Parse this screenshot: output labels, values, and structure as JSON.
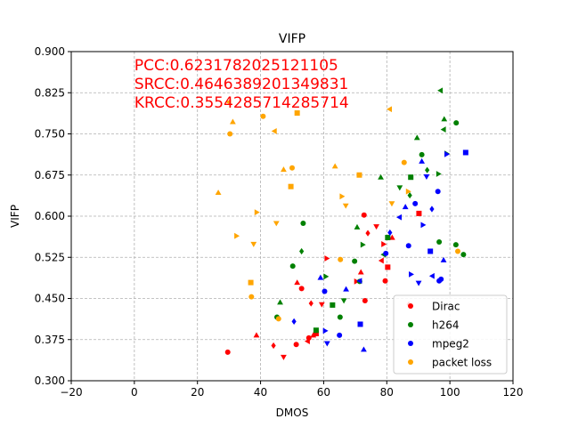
{
  "chart_data": {
    "type": "scatter",
    "title": "VIFP",
    "xlabel": "DMOS",
    "ylabel": "VIFP",
    "xlim": [
      -20,
      120
    ],
    "ylim": [
      0.3,
      0.9
    ],
    "xticks": [
      "−20",
      "0",
      "20",
      "40",
      "60",
      "80",
      "100",
      "120"
    ],
    "yticks": [
      "0.300",
      "0.375",
      "0.450",
      "0.525",
      "0.600",
      "0.675",
      "0.750",
      "0.825",
      "0.900"
    ],
    "grid": true,
    "legend_position": "lower-right",
    "annotations": [
      "PCC:0.6231782025121105",
      "SRCC:0.4646389201349831",
      "KRCC:0.3554285714285714"
    ],
    "annotation_color": "#ff0000",
    "series": [
      {
        "name": "Dirac",
        "color": "#ff0000",
        "points": [
          {
            "x": 29.6,
            "y": 0.352,
            "m": "circle"
          },
          {
            "x": 38.7,
            "y": 0.383,
            "m": "tri-up"
          },
          {
            "x": 44.1,
            "y": 0.364,
            "m": "diamond"
          },
          {
            "x": 47.3,
            "y": 0.343,
            "m": "tri-down"
          },
          {
            "x": 51.3,
            "y": 0.366,
            "m": "circle"
          },
          {
            "x": 51.6,
            "y": 0.479,
            "m": "tri-up"
          },
          {
            "x": 53.0,
            "y": 0.468,
            "m": "circle"
          },
          {
            "x": 54.9,
            "y": 0.372,
            "m": "tri-left"
          },
          {
            "x": 55.3,
            "y": 0.378,
            "m": "circle"
          },
          {
            "x": 56.0,
            "y": 0.441,
            "m": "diamond"
          },
          {
            "x": 56.7,
            "y": 0.383,
            "m": "tri-up"
          },
          {
            "x": 57.6,
            "y": 0.386,
            "m": "square"
          },
          {
            "x": 59.4,
            "y": 0.439,
            "m": "tri-down"
          },
          {
            "x": 61.0,
            "y": 0.523,
            "m": "tri-right"
          },
          {
            "x": 70.4,
            "y": 0.481,
            "m": "tri-right"
          },
          {
            "x": 71.8,
            "y": 0.498,
            "m": "tri-up"
          },
          {
            "x": 72.8,
            "y": 0.602,
            "m": "circle"
          },
          {
            "x": 73.1,
            "y": 0.446,
            "m": "circle"
          },
          {
            "x": 74.0,
            "y": 0.569,
            "m": "diamond"
          },
          {
            "x": 76.7,
            "y": 0.581,
            "m": "tri-down"
          },
          {
            "x": 78.3,
            "y": 0.519,
            "m": "tri-left"
          },
          {
            "x": 79.0,
            "y": 0.549,
            "m": "tri-right"
          },
          {
            "x": 79.5,
            "y": 0.482,
            "m": "circle"
          },
          {
            "x": 80.3,
            "y": 0.507,
            "m": "square"
          },
          {
            "x": 81.7,
            "y": 0.561,
            "m": "tri-up"
          },
          {
            "x": 87.0,
            "y": 0.439,
            "m": "diamond"
          },
          {
            "x": 90.2,
            "y": 0.605,
            "m": "square"
          }
        ]
      },
      {
        "name": "h264",
        "color": "#008000",
        "points": [
          {
            "x": 45.2,
            "y": 0.416,
            "m": "circle"
          },
          {
            "x": 46.2,
            "y": 0.443,
            "m": "tri-up"
          },
          {
            "x": 50.2,
            "y": 0.509,
            "m": "circle"
          },
          {
            "x": 53.5,
            "y": 0.587,
            "m": "circle"
          },
          {
            "x": 53.0,
            "y": 0.536,
            "m": "diamond"
          },
          {
            "x": 57.6,
            "y": 0.392,
            "m": "square"
          },
          {
            "x": 60.7,
            "y": 0.49,
            "m": "tri-right"
          },
          {
            "x": 62.8,
            "y": 0.438,
            "m": "square"
          },
          {
            "x": 65.2,
            "y": 0.416,
            "m": "circle"
          },
          {
            "x": 66.4,
            "y": 0.446,
            "m": "tri-down"
          },
          {
            "x": 69.8,
            "y": 0.518,
            "m": "circle"
          },
          {
            "x": 70.6,
            "y": 0.58,
            "m": "tri-up"
          },
          {
            "x": 71.4,
            "y": 0.481,
            "m": "circle"
          },
          {
            "x": 72.4,
            "y": 0.548,
            "m": "tri-right"
          },
          {
            "x": 79.0,
            "y": 0.53,
            "m": "tri-left"
          },
          {
            "x": 78.1,
            "y": 0.671,
            "m": "tri-up"
          },
          {
            "x": 80.3,
            "y": 0.561,
            "m": "square"
          },
          {
            "x": 84.1,
            "y": 0.652,
            "m": "tri-down"
          },
          {
            "x": 87.3,
            "y": 0.638,
            "m": "diamond"
          },
          {
            "x": 87.6,
            "y": 0.671,
            "m": "square"
          },
          {
            "x": 89.6,
            "y": 0.743,
            "m": "tri-up"
          },
          {
            "x": 91.1,
            "y": 0.712,
            "m": "circle"
          },
          {
            "x": 92.8,
            "y": 0.684,
            "m": "diamond"
          },
          {
            "x": 96.6,
            "y": 0.553,
            "m": "circle"
          },
          {
            "x": 97.0,
            "y": 0.829,
            "m": "tri-left"
          },
          {
            "x": 98.0,
            "y": 0.758,
            "m": "tri-left"
          },
          {
            "x": 98.2,
            "y": 0.777,
            "m": "tri-up"
          },
          {
            "x": 99.0,
            "y": 0.714,
            "m": "tri-right"
          },
          {
            "x": 101.9,
            "y": 0.548,
            "m": "circle"
          },
          {
            "x": 102.0,
            "y": 0.77,
            "m": "circle"
          },
          {
            "x": 104.3,
            "y": 0.53,
            "m": "circle"
          },
          {
            "x": 96.4,
            "y": 0.677,
            "m": "tri-right"
          }
        ]
      },
      {
        "name": "mpeg2",
        "color": "#0000ff",
        "points": [
          {
            "x": 50.6,
            "y": 0.408,
            "m": "diamond"
          },
          {
            "x": 59.0,
            "y": 0.488,
            "m": "tri-up"
          },
          {
            "x": 60.3,
            "y": 0.463,
            "m": "circle"
          },
          {
            "x": 60.5,
            "y": 0.391,
            "m": "tri-right"
          },
          {
            "x": 61.1,
            "y": 0.368,
            "m": "tri-down"
          },
          {
            "x": 65.0,
            "y": 0.383,
            "m": "circle"
          },
          {
            "x": 67.1,
            "y": 0.467,
            "m": "tri-up"
          },
          {
            "x": 71.4,
            "y": 0.482,
            "m": "tri-left"
          },
          {
            "x": 71.6,
            "y": 0.403,
            "m": "square"
          },
          {
            "x": 72.7,
            "y": 0.357,
            "m": "tri-up"
          },
          {
            "x": 79.7,
            "y": 0.532,
            "m": "circle"
          },
          {
            "x": 81.0,
            "y": 0.57,
            "m": "diamond"
          },
          {
            "x": 84.0,
            "y": 0.598,
            "m": "tri-left"
          },
          {
            "x": 85.9,
            "y": 0.617,
            "m": "tri-up"
          },
          {
            "x": 86.9,
            "y": 0.546,
            "m": "circle"
          },
          {
            "x": 87.7,
            "y": 0.494,
            "m": "tri-right"
          },
          {
            "x": 89.0,
            "y": 0.623,
            "m": "circle"
          },
          {
            "x": 90.1,
            "y": 0.478,
            "m": "tri-down"
          },
          {
            "x": 91.1,
            "y": 0.7,
            "m": "tri-up"
          },
          {
            "x": 91.5,
            "y": 0.584,
            "m": "tri-right"
          },
          {
            "x": 92.6,
            "y": 0.672,
            "m": "tri-down"
          },
          {
            "x": 93.8,
            "y": 0.536,
            "m": "square"
          },
          {
            "x": 94.3,
            "y": 0.613,
            "m": "diamond"
          },
          {
            "x": 94.4,
            "y": 0.491,
            "m": "tri-left"
          },
          {
            "x": 96.2,
            "y": 0.645,
            "m": "circle"
          },
          {
            "x": 96.6,
            "y": 0.482,
            "m": "circle"
          },
          {
            "x": 97.2,
            "y": 0.485,
            "m": "circle"
          },
          {
            "x": 98.0,
            "y": 0.52,
            "m": "tri-up"
          },
          {
            "x": 99.0,
            "y": 0.713,
            "m": "tri-right"
          },
          {
            "x": 105.0,
            "y": 0.716,
            "m": "square"
          }
        ]
      },
      {
        "name": "packet loss",
        "color": "#ffa500",
        "points": [
          {
            "x": 26.6,
            "y": 0.643,
            "m": "tri-up"
          },
          {
            "x": 29.9,
            "y": 0.808,
            "m": "tri-left"
          },
          {
            "x": 30.3,
            "y": 0.75,
            "m": "circle"
          },
          {
            "x": 31.2,
            "y": 0.772,
            "m": "tri-up"
          },
          {
            "x": 32.4,
            "y": 0.564,
            "m": "tri-right"
          },
          {
            "x": 36.9,
            "y": 0.479,
            "m": "square"
          },
          {
            "x": 37.1,
            "y": 0.453,
            "m": "circle"
          },
          {
            "x": 37.8,
            "y": 0.549,
            "m": "tri-down"
          },
          {
            "x": 38.8,
            "y": 0.607,
            "m": "tri-right"
          },
          {
            "x": 40.8,
            "y": 0.782,
            "m": "circle"
          },
          {
            "x": 44.4,
            "y": 0.755,
            "m": "tri-left"
          },
          {
            "x": 45.0,
            "y": 0.587,
            "m": "tri-down"
          },
          {
            "x": 45.7,
            "y": 0.413,
            "m": "circle"
          },
          {
            "x": 47.3,
            "y": 0.685,
            "m": "tri-up"
          },
          {
            "x": 49.6,
            "y": 0.654,
            "m": "square"
          },
          {
            "x": 50.0,
            "y": 0.688,
            "m": "circle"
          },
          {
            "x": 51.6,
            "y": 0.788,
            "m": "square"
          },
          {
            "x": 63.6,
            "y": 0.691,
            "m": "tri-up"
          },
          {
            "x": 65.3,
            "y": 0.521,
            "m": "circle"
          },
          {
            "x": 65.8,
            "y": 0.636,
            "m": "tri-right"
          },
          {
            "x": 67.0,
            "y": 0.619,
            "m": "tri-down"
          },
          {
            "x": 71.3,
            "y": 0.675,
            "m": "square"
          },
          {
            "x": 80.9,
            "y": 0.795,
            "m": "tri-left"
          },
          {
            "x": 81.6,
            "y": 0.623,
            "m": "tri-down"
          },
          {
            "x": 85.5,
            "y": 0.698,
            "m": "circle"
          },
          {
            "x": 86.8,
            "y": 0.645,
            "m": "tri-right"
          },
          {
            "x": 102.5,
            "y": 0.536,
            "m": "circle"
          }
        ]
      }
    ]
  }
}
